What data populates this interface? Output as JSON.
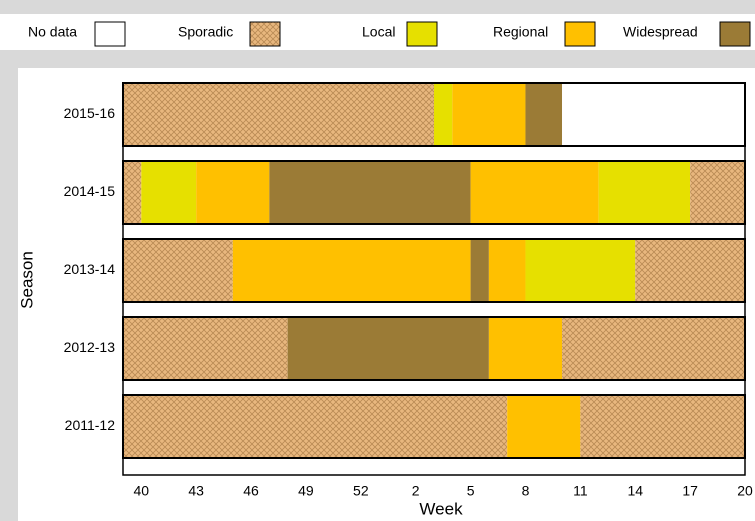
{
  "chart_data": {
    "type": "stacked-hbar",
    "x_label": "Week",
    "y_label": "Season",
    "legend": [
      {
        "name": "No data",
        "color": "#ffffff"
      },
      {
        "name": "Sporadic",
        "color": "#e8b77e",
        "pattern": "crosshatch"
      },
      {
        "name": "Local",
        "color": "#e6e000"
      },
      {
        "name": "Regional",
        "color": "#ffc000"
      },
      {
        "name": "Widespread",
        "color": "#9b7b36"
      }
    ],
    "xlim": [
      -1,
      33
    ],
    "xticks": [
      {
        "value": 0,
        "label": "40"
      },
      {
        "value": 3,
        "label": "43"
      },
      {
        "value": 6,
        "label": "46"
      },
      {
        "value": 9,
        "label": "49"
      },
      {
        "value": 12,
        "label": "52"
      },
      {
        "value": 15,
        "label": "2"
      },
      {
        "value": 18,
        "label": "5"
      },
      {
        "value": 21,
        "label": "8"
      },
      {
        "value": 24,
        "label": "11"
      },
      {
        "value": 27,
        "label": "14"
      },
      {
        "value": 30,
        "label": "17"
      },
      {
        "value": 33,
        "label": "20"
      }
    ],
    "rows": [
      {
        "season": "2015-16",
        "segments": [
          {
            "level": "Sporadic",
            "weeks": 17
          },
          {
            "level": "Local",
            "weeks": 1
          },
          {
            "level": "Regional",
            "weeks": 4
          },
          {
            "level": "Widespread",
            "weeks": 2
          },
          {
            "level": "No data",
            "weeks": 10
          }
        ]
      },
      {
        "season": "2014-15",
        "segments": [
          {
            "level": "Sporadic",
            "weeks": 1
          },
          {
            "level": "Local",
            "weeks": 3
          },
          {
            "level": "Regional",
            "weeks": 4
          },
          {
            "level": "Widespread",
            "weeks": 11
          },
          {
            "level": "Regional",
            "weeks": 7
          },
          {
            "level": "Local",
            "weeks": 5
          },
          {
            "level": "Sporadic",
            "weeks": 3
          }
        ]
      },
      {
        "season": "2013-14",
        "segments": [
          {
            "level": "Sporadic",
            "weeks": 6
          },
          {
            "level": "Regional",
            "weeks": 13
          },
          {
            "level": "Widespread",
            "weeks": 1
          },
          {
            "level": "Regional",
            "weeks": 2
          },
          {
            "level": "Local",
            "weeks": 6
          },
          {
            "level": "Sporadic",
            "weeks": 6
          }
        ]
      },
      {
        "season": "2012-13",
        "segments": [
          {
            "level": "Sporadic",
            "weeks": 9
          },
          {
            "level": "Widespread",
            "weeks": 11
          },
          {
            "level": "Regional",
            "weeks": 4
          },
          {
            "level": "Sporadic",
            "weeks": 10
          }
        ]
      },
      {
        "season": "2011-12",
        "segments": [
          {
            "level": "Sporadic",
            "weeks": 21
          },
          {
            "level": "Regional",
            "weeks": 4
          },
          {
            "level": "Sporadic",
            "weeks": 9
          }
        ]
      }
    ]
  }
}
